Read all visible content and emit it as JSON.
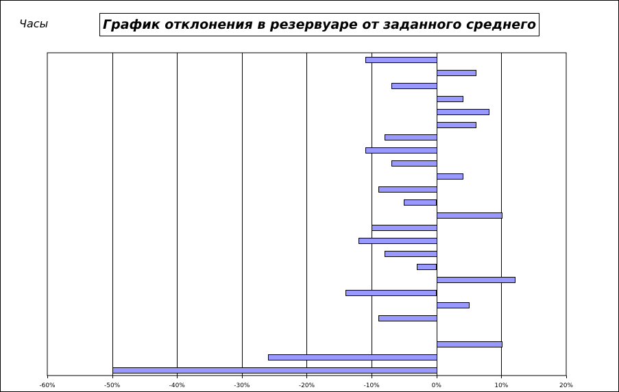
{
  "chart_data": {
    "type": "bar",
    "orientation": "horizontal",
    "title": "График отклонения в резервуаре от заданного среднего",
    "ylabel": "Часы",
    "xlabel": "",
    "xlim": [
      -0.6,
      0.2
    ],
    "xticks": [
      -0.6,
      -0.5,
      -0.4,
      -0.3,
      -0.2,
      -0.1,
      0,
      0.1,
      0.2
    ],
    "xtick_labels": [
      "-60%",
      "-50%",
      "-40%",
      "-30%",
      "-20%",
      "-10%",
      "0%",
      "10%",
      "20%"
    ],
    "grid": "vertical",
    "legend": "none",
    "bar_color": "#9999ff",
    "bar_edge_color": "#000000",
    "values": [
      -0.11,
      0.06,
      -0.07,
      0.04,
      0.08,
      0.06,
      -0.08,
      -0.11,
      -0.07,
      0.04,
      -0.09,
      -0.05,
      0.1,
      -0.1,
      -0.12,
      -0.08,
      -0.03,
      0.12,
      -0.14,
      0.05,
      -0.09,
      null,
      0.1,
      -0.26,
      -0.5
    ]
  }
}
